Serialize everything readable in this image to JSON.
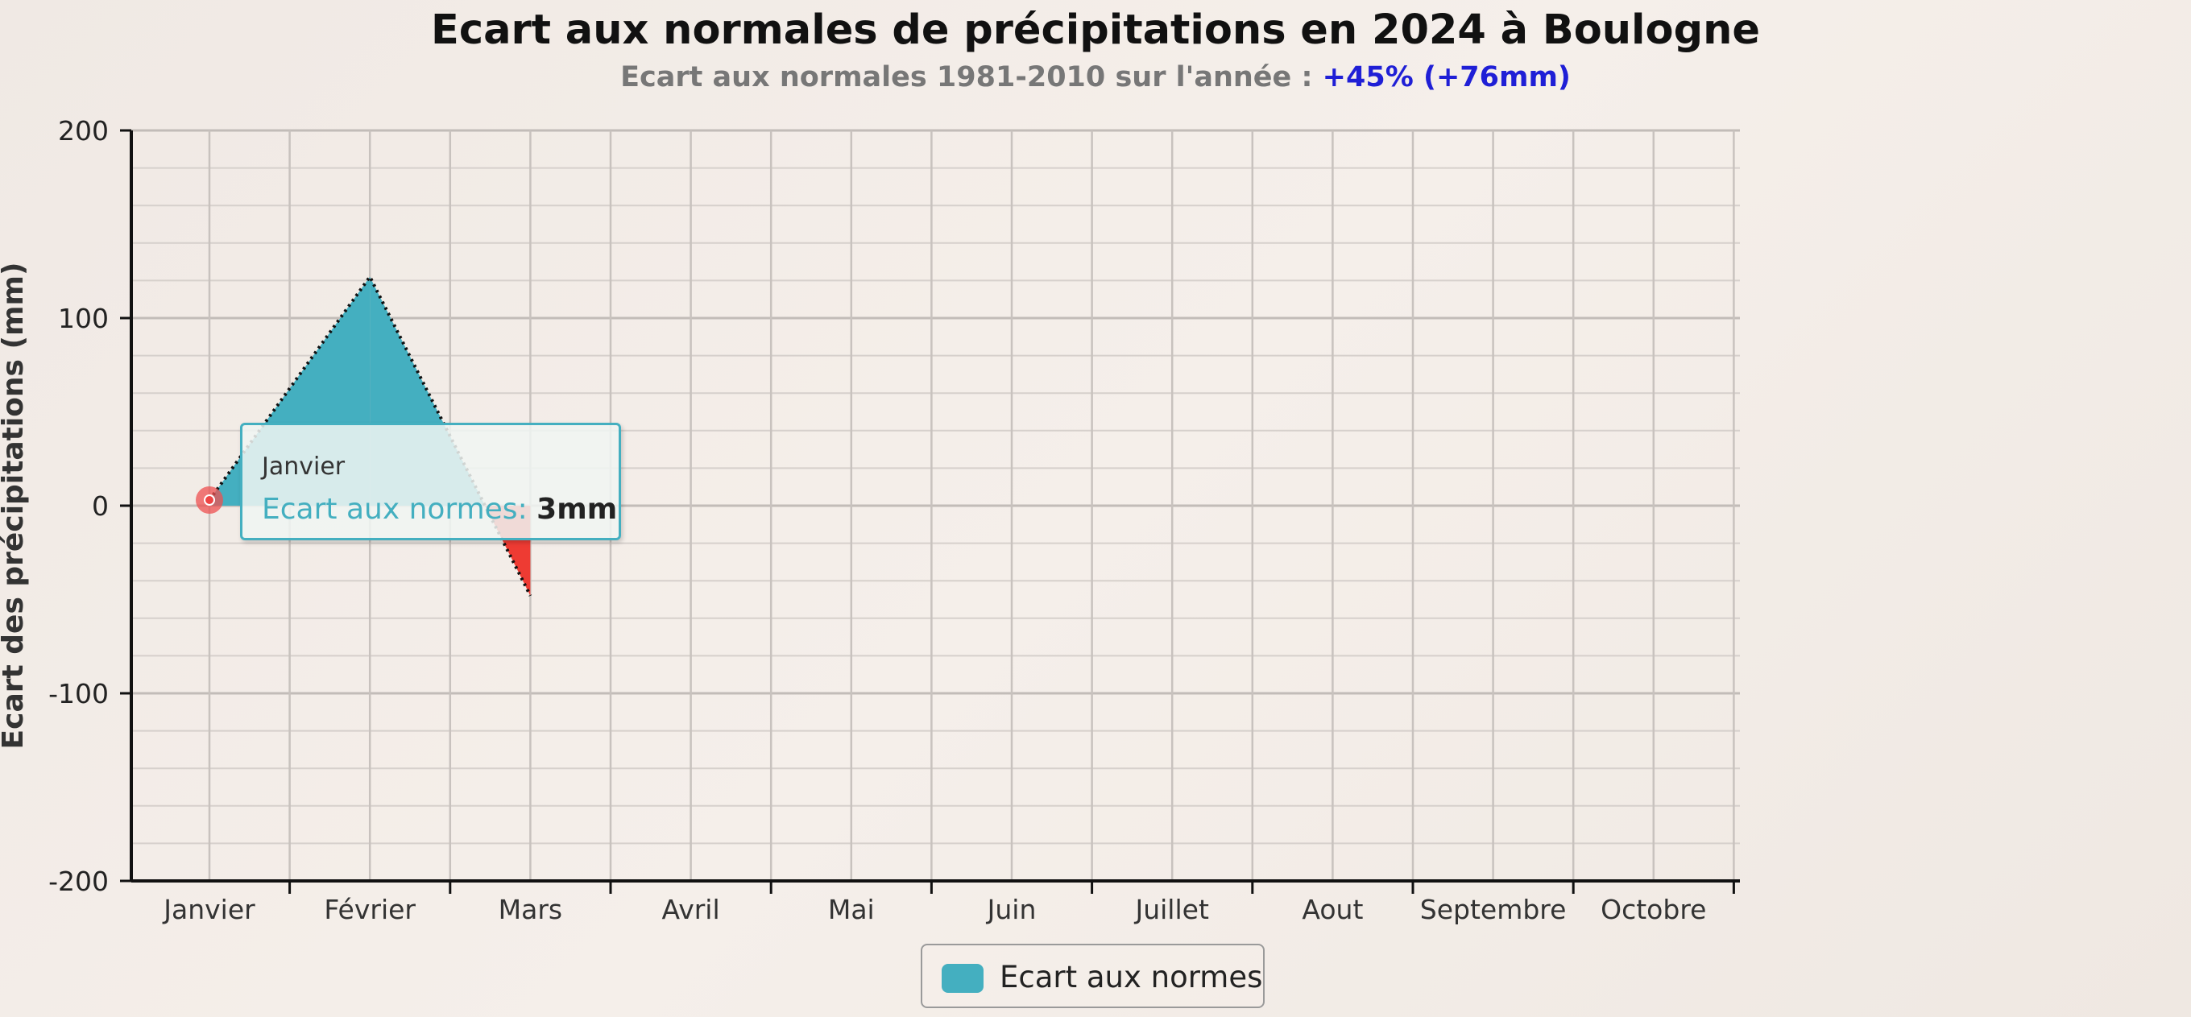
{
  "title": "Ecart aux normales de précipitations en 2024 à Boulogne",
  "subtitle": {
    "prefix": "Ecart aux normales 1981-2010 sur l'année : ",
    "highlight": "+45% (+76mm)",
    "highlight_color": "#1f1fd6"
  },
  "tooltip": {
    "category": "Janvier",
    "series_label": "Ecart aux normes: ",
    "value_text": "3mm"
  },
  "legend": {
    "label": "Ecart aux normes"
  },
  "chart_data": {
    "type": "area",
    "title": "Ecart aux normales de précipitations en 2024 à Boulogne",
    "subtitle": "Ecart aux normales 1981-2010 sur l'année : +45% (+76mm)",
    "xlabel": "",
    "ylabel": "Ecart des précipitations (mm)",
    "ylim": [
      -200,
      200
    ],
    "yticks": [
      "200",
      "100",
      "0",
      "-100",
      "-200"
    ],
    "categories": [
      "Janvier",
      "Février",
      "Mars",
      "Avril",
      "Mai",
      "Juin",
      "Juillet",
      "Aout",
      "Septembre",
      "Octobre"
    ],
    "series": [
      {
        "name": "Ecart aux normes",
        "values": [
          3,
          122,
          -48,
          null,
          null,
          null,
          null,
          null,
          null,
          null
        ],
        "color": "#44afc0",
        "negative_color": "#ee3b33"
      }
    ],
    "grid": true,
    "legend_position": "bottom-center",
    "highlighted_point": {
      "category": "Janvier",
      "value": 3
    }
  }
}
